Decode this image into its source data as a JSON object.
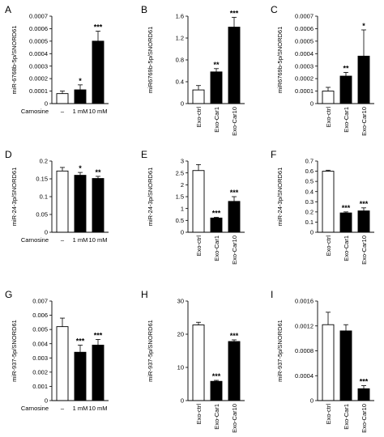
{
  "figure": {
    "panels": [
      {
        "id": "A",
        "letter": "A",
        "ylabel": "miR-6768b-5p/SNORD61",
        "xmode": "carnosine",
        "xtitle": "Carnosine",
        "categories": [
          "–",
          "1 mM",
          "10 mM"
        ],
        "ylim": [
          0,
          0.0007
        ],
        "yticks": [
          "0",
          "0.0001",
          "0.0002",
          "0.0003",
          "0.0004",
          "0.0005",
          "0.0006",
          "0.0007"
        ]
      },
      {
        "id": "B",
        "letter": "B",
        "ylabel": "miR6769b-5p/SNORD61",
        "xmode": "exo",
        "xtitle": "",
        "categories": [
          "Exo-ctrl",
          "Exo-Car1",
          "Exo-Car10"
        ],
        "ylim": [
          0,
          1.6
        ],
        "yticks": [
          "0",
          "0.4",
          "0.8",
          "1.2",
          "1.6"
        ]
      },
      {
        "id": "C",
        "letter": "C",
        "ylabel": "miR6769b-5p/SNORD61",
        "xmode": "exo",
        "xtitle": "",
        "categories": [
          "Exo-ctrl",
          "Exo-Car1",
          "Exo-Car10"
        ],
        "ylim": [
          0,
          0.0007
        ],
        "yticks": [
          "0",
          "0.0001",
          "0.0002",
          "0.0003",
          "0.0004",
          "0.0005",
          "0.0006",
          "0.0007"
        ]
      },
      {
        "id": "D",
        "letter": "D",
        "ylabel": "miR-24-3p/SNORD61",
        "xmode": "carnosine",
        "xtitle": "Carnosine",
        "categories": [
          "–",
          "1 mM",
          "10 mM"
        ],
        "ylim": [
          0,
          0.2
        ],
        "yticks": [
          "0",
          "0.05",
          "0.1",
          "0.15",
          "0.2"
        ]
      },
      {
        "id": "E",
        "letter": "E",
        "ylabel": "miR-24-3p/SNORD61",
        "xmode": "exo",
        "xtitle": "",
        "categories": [
          "Exo-ctrl",
          "Exo-Car1",
          "Exo-Car10"
        ],
        "ylim": [
          0,
          3
        ],
        "yticks": [
          "0",
          "0.5",
          "1",
          "1.5",
          "2",
          "2.5",
          "3"
        ]
      },
      {
        "id": "F",
        "letter": "F",
        "ylabel": "miR-24-3p/SNORD61",
        "xmode": "exo",
        "xtitle": "",
        "categories": [
          "Exo-ctrl",
          "Exo-Car1",
          "Exo-Car10"
        ],
        "ylim": [
          0,
          0.7
        ],
        "yticks": [
          "0",
          "0.1",
          "0.2",
          "0.3",
          "0.4",
          "0.5",
          "0.6",
          "0.7"
        ]
      },
      {
        "id": "G",
        "letter": "G",
        "ylabel": "miR-937-5p/SNORD61",
        "xmode": "carnosine",
        "xtitle": "Carnosine",
        "categories": [
          "–",
          "1 mM",
          "10 mM"
        ],
        "ylim": [
          0,
          0.007
        ],
        "yticks": [
          "0",
          "0.001",
          "0.002",
          "0.003",
          "0.004",
          "0.005",
          "0.006",
          "0.007"
        ]
      },
      {
        "id": "H",
        "letter": "H",
        "ylabel": "miR-937-5p/SNORD61",
        "xmode": "exo",
        "xtitle": "",
        "categories": [
          "Exo-ctrl",
          "Exo-Car1",
          "Exo-Car10"
        ],
        "ylim": [
          0,
          30
        ],
        "yticks": [
          "0",
          "10",
          "20",
          "30"
        ]
      },
      {
        "id": "I",
        "letter": "I",
        "ylabel": "miR-937-5p/SNORD61",
        "xmode": "exo",
        "xtitle": "",
        "categories": [
          "Exo-ctrl",
          "Exo-Car1",
          "Exo-Car10"
        ],
        "ylim": [
          0,
          0.0016
        ],
        "yticks": [
          "0",
          "0.0004",
          "0.0008",
          "0.0012",
          "0.0016"
        ]
      }
    ]
  },
  "chart_data": [
    {
      "type": "bar",
      "panel": "A",
      "categories": [
        "–",
        "1 mM",
        "10 mM"
      ],
      "xlabel": "Carnosine",
      "ylabel": "miR-6768b-5p/SNORD61",
      "ylim": [
        0,
        0.0007
      ],
      "values": [
        8e-05,
        0.00011,
        0.0005
      ],
      "errors": [
        2e-05,
        4e-05,
        8e-05
      ],
      "significance": [
        "",
        "*",
        "***"
      ],
      "fills": [
        "#ffffff",
        "#000000",
        "#000000"
      ]
    },
    {
      "type": "bar",
      "panel": "B",
      "categories": [
        "Exo-ctrl",
        "Exo-Car1",
        "Exo-Car10"
      ],
      "xlabel": "",
      "ylabel": "miR6769b-5p/SNORD61",
      "ylim": [
        0,
        1.6
      ],
      "values": [
        0.25,
        0.58,
        1.4
      ],
      "errors": [
        0.08,
        0.06,
        0.18
      ],
      "significance": [
        "",
        "**",
        "***"
      ],
      "fills": [
        "#ffffff",
        "#000000",
        "#000000"
      ]
    },
    {
      "type": "bar",
      "panel": "C",
      "categories": [
        "Exo-ctrl",
        "Exo-Car1",
        "Exo-Car10"
      ],
      "xlabel": "",
      "ylabel": "miR6769b-5p/SNORD61",
      "ylim": [
        0,
        0.0007
      ],
      "values": [
        0.0001,
        0.00022,
        0.00038
      ],
      "errors": [
        3e-05,
        3e-05,
        0.00021
      ],
      "significance": [
        "",
        "**",
        "*"
      ],
      "fills": [
        "#ffffff",
        "#000000",
        "#000000"
      ]
    },
    {
      "type": "bar",
      "panel": "D",
      "categories": [
        "–",
        "1 mM",
        "10 mM"
      ],
      "xlabel": "Carnosine",
      "ylabel": "miR-24-3p/SNORD61",
      "ylim": [
        0,
        0.2
      ],
      "values": [
        0.172,
        0.16,
        0.151
      ],
      "errors": [
        0.01,
        0.008,
        0.006
      ],
      "significance": [
        "",
        "*",
        "**"
      ],
      "fills": [
        "#ffffff",
        "#000000",
        "#000000"
      ]
    },
    {
      "type": "bar",
      "panel": "E",
      "categories": [
        "Exo-ctrl",
        "Exo-Car1",
        "Exo-Car10"
      ],
      "xlabel": "",
      "ylabel": "miR-24-3p/SNORD61",
      "ylim": [
        0,
        3
      ],
      "values": [
        2.6,
        0.6,
        1.3
      ],
      "errors": [
        0.25,
        0.03,
        0.2
      ],
      "significance": [
        "",
        "***",
        "***"
      ],
      "fills": [
        "#ffffff",
        "#000000",
        "#000000"
      ]
    },
    {
      "type": "bar",
      "panel": "F",
      "categories": [
        "Exo-ctrl",
        "Exo-Car1",
        "Exo-Car10"
      ],
      "xlabel": "",
      "ylabel": "miR-24-3p/SNORD61",
      "ylim": [
        0,
        0.7
      ],
      "values": [
        0.6,
        0.19,
        0.21
      ],
      "errors": [
        0.01,
        0.01,
        0.03
      ],
      "significance": [
        "",
        "***",
        "***"
      ],
      "fills": [
        "#ffffff",
        "#000000",
        "#000000"
      ]
    },
    {
      "type": "bar",
      "panel": "G",
      "categories": [
        "–",
        "1 mM",
        "10 mM"
      ],
      "xlabel": "Carnosine",
      "ylabel": "miR-937-5p/SNORD61",
      "ylim": [
        0,
        0.007
      ],
      "values": [
        0.0052,
        0.0034,
        0.0039
      ],
      "errors": [
        0.0006,
        0.0005,
        0.0004
      ],
      "significance": [
        "",
        "***",
        "***"
      ],
      "fills": [
        "#ffffff",
        "#000000",
        "#000000"
      ]
    },
    {
      "type": "bar",
      "panel": "H",
      "categories": [
        "Exo-ctrl",
        "Exo-Car1",
        "Exo-Car10"
      ],
      "xlabel": "",
      "ylabel": "miR-937-5p/SNORD61",
      "ylim": [
        0,
        30
      ],
      "values": [
        22.8,
        5.8,
        17.8
      ],
      "errors": [
        0.8,
        0.3,
        0.5
      ],
      "significance": [
        "",
        "***",
        "***"
      ],
      "fills": [
        "#ffffff",
        "#000000",
        "#000000"
      ]
    },
    {
      "type": "bar",
      "panel": "I",
      "categories": [
        "Exo-ctrl",
        "Exo-Car1",
        "Exo-Car10"
      ],
      "xlabel": "",
      "ylabel": "miR-937-5p/SNORD61",
      "ylim": [
        0,
        0.0016
      ],
      "values": [
        0.00122,
        0.00112,
        0.00019
      ],
      "errors": [
        0.0002,
        0.0001,
        5e-05
      ],
      "significance": [
        "",
        "",
        "***"
      ],
      "fills": [
        "#ffffff",
        "#000000",
        "#000000"
      ]
    }
  ]
}
